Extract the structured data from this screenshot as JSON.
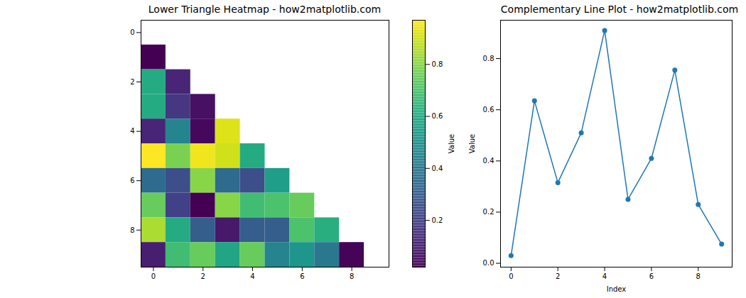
{
  "chart_data": [
    {
      "type": "heatmap",
      "title": "Lower Triangle Heatmap - how2matplotlib.com",
      "cells": [
        [
          null,
          null,
          null,
          null,
          null,
          null,
          null,
          null,
          null,
          null
        ],
        [
          0.02,
          null,
          null,
          null,
          null,
          null,
          null,
          null,
          null,
          null
        ],
        [
          0.6,
          0.12,
          null,
          null,
          null,
          null,
          null,
          null,
          null,
          null
        ],
        [
          0.6,
          0.17,
          0.06,
          null,
          null,
          null,
          null,
          null,
          null,
          null
        ],
        [
          0.12,
          0.45,
          0.04,
          0.92,
          null,
          null,
          null,
          null,
          null,
          null
        ],
        [
          0.97,
          0.78,
          0.95,
          0.9,
          0.6,
          null,
          null,
          null,
          null,
          null
        ],
        [
          0.35,
          0.25,
          0.8,
          0.35,
          0.25,
          0.55,
          null,
          null,
          null,
          null
        ],
        [
          0.75,
          0.2,
          0.02,
          0.8,
          0.68,
          0.7,
          0.75,
          null,
          null,
          null
        ],
        [
          0.85,
          0.6,
          0.3,
          0.08,
          0.3,
          0.3,
          0.7,
          0.62,
          null,
          null
        ],
        [
          0.1,
          0.68,
          0.75,
          0.58,
          0.75,
          0.45,
          0.52,
          0.4,
          0.03,
          null
        ]
      ],
      "xlim": [
        -0.5,
        9.5
      ],
      "xticks": [
        0,
        2,
        4,
        6,
        8
      ],
      "ylim": [
        9.5,
        -0.5
      ],
      "yticks": [
        0,
        2,
        4,
        6,
        8
      ],
      "color": "viridis",
      "colorbar": {
        "label": "Value",
        "range": [
          0.02,
          0.97
        ],
        "ticks": [
          0.2,
          0.4,
          0.6,
          0.8
        ]
      }
    },
    {
      "type": "line",
      "title": "Complementary Line Plot - how2matplotlib.com",
      "x_label": "Index",
      "y_label": "Value",
      "x": [
        0,
        1,
        2,
        3,
        4,
        5,
        6,
        7,
        8,
        9
      ],
      "values": [
        0.03,
        0.635,
        0.315,
        0.51,
        0.91,
        0.25,
        0.41,
        0.755,
        0.23,
        0.075
      ],
      "color": "#1f77b4",
      "marker": "circle",
      "xlim": [
        -0.45,
        9.45
      ],
      "xticks": [
        0,
        2,
        4,
        6,
        8
      ],
      "ylim": [
        -0.015,
        0.95
      ],
      "yticks": [
        {
          "value": 0,
          "label": "0.0"
        },
        0.2,
        0.4,
        0.6,
        0.8
      ]
    }
  ]
}
